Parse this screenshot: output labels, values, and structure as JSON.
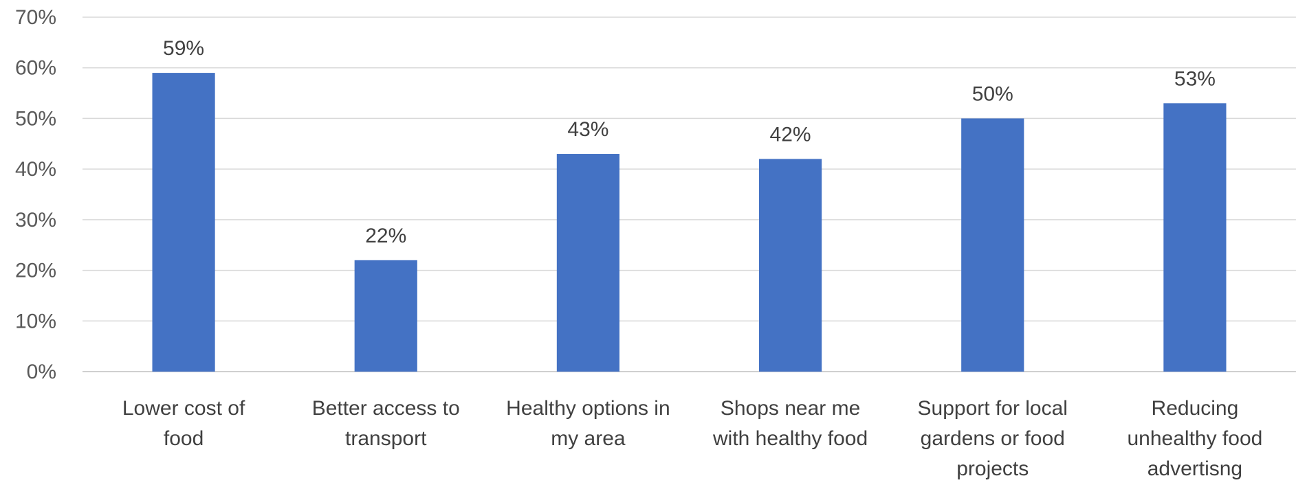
{
  "chart_data": {
    "type": "bar",
    "categories": [
      [
        "Lower cost of",
        "food"
      ],
      [
        "Better access to",
        "transport"
      ],
      [
        "Healthy options in",
        "my area"
      ],
      [
        "Shops near me",
        "with healthy food"
      ],
      [
        "Support for local",
        "gardens or food",
        "projects"
      ],
      [
        "Reducing",
        "unhealthy food",
        "advertisng"
      ]
    ],
    "values": [
      59,
      22,
      43,
      42,
      50,
      53
    ],
    "value_labels": [
      "59%",
      "22%",
      "43%",
      "42%",
      "50%",
      "53%"
    ],
    "y_ticks": [
      "0%",
      "10%",
      "20%",
      "30%",
      "40%",
      "50%",
      "60%",
      "70%"
    ],
    "ylim": [
      0,
      70
    ],
    "y_unit": "%",
    "grid": true,
    "legend": "none",
    "colors": {
      "bar": "#4472c4",
      "grid": "#d9d9d9",
      "text": "#404040"
    }
  }
}
